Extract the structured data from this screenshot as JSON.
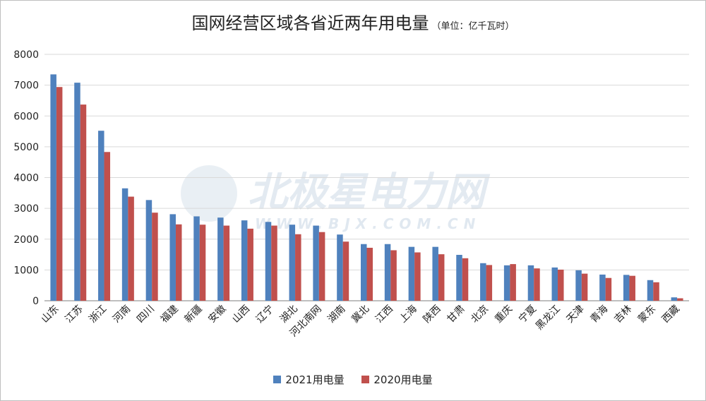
{
  "title": "国网经营区域各省近两年用电量",
  "unit": "（单位：亿千瓦时）",
  "watermark": {
    "main": "北极星电力网",
    "sub": "WWW.BJX.COM.CN"
  },
  "colors": {
    "series2021": "#4f81bd",
    "series2020": "#c0504d",
    "grid": "#d9d9d9",
    "axis": "#7f7f7f"
  },
  "chart_data": {
    "type": "bar",
    "categories": [
      "山东",
      "江苏",
      "浙江",
      "河南",
      "四川",
      "福建",
      "新疆",
      "安徽",
      "山西",
      "辽宁",
      "湖北",
      "河北南网",
      "湖南",
      "冀北",
      "江西",
      "上海",
      "陕西",
      "甘肃",
      "北京",
      "重庆",
      "宁夏",
      "黑龙江",
      "天津",
      "青海",
      "吉林",
      "蒙东",
      "西藏"
    ],
    "series": [
      {
        "name": "2021用电量",
        "values": [
          7350,
          7080,
          5520,
          3650,
          3270,
          2810,
          2740,
          2700,
          2610,
          2560,
          2470,
          2440,
          2150,
          1840,
          1840,
          1750,
          1750,
          1490,
          1220,
          1150,
          1150,
          1080,
          990,
          850,
          840,
          670,
          110
        ]
      },
      {
        "name": "2020用电量",
        "values": [
          6940,
          6370,
          4830,
          3380,
          2860,
          2480,
          2470,
          2440,
          2340,
          2440,
          2160,
          2230,
          1920,
          1720,
          1640,
          1570,
          1510,
          1380,
          1160,
          1190,
          1050,
          1010,
          880,
          740,
          810,
          600,
          80
        ]
      }
    ],
    "ylim": [
      0,
      8000
    ],
    "yticks": [
      0,
      1000,
      2000,
      3000,
      4000,
      5000,
      6000,
      7000,
      8000
    ],
    "grid": true,
    "legend_position": "bottom"
  }
}
